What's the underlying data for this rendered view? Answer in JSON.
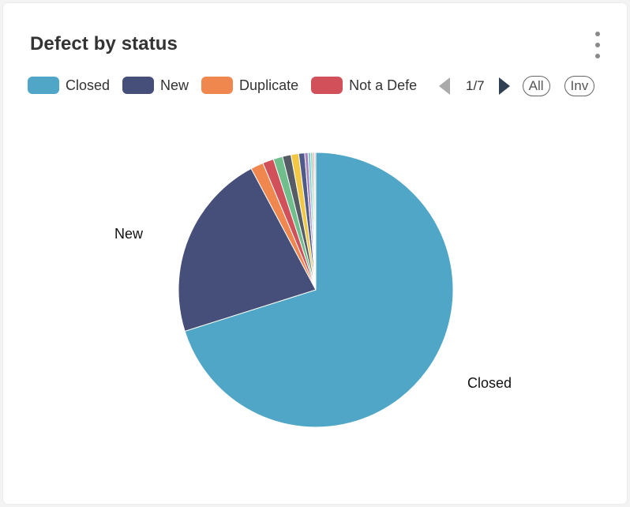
{
  "card": {
    "title": "Defect by status",
    "menu_icon": "kebab-vertical-icon"
  },
  "legend": {
    "items": [
      {
        "label": "Closed",
        "color": "#4fa6c7"
      },
      {
        "label": "New",
        "color": "#464f7a"
      },
      {
        "label": "Duplicate",
        "color": "#f0874f"
      },
      {
        "label": "Not a Defe",
        "color": "#d1505a"
      }
    ],
    "pager": {
      "prev_icon": "triangle-left-icon",
      "page": "1/7",
      "next_icon": "triangle-right-icon"
    },
    "all_label": "All",
    "inv_label": "Inv"
  },
  "chart_data": {
    "type": "pie",
    "title": "Defect by status",
    "slice_labels": [
      "Closed",
      "New"
    ],
    "slices": [
      {
        "name": "Closed",
        "value": 70.2,
        "color": "#4fa6c7",
        "labeled": true
      },
      {
        "name": "New",
        "value": 22.1,
        "color": "#464f7a",
        "labeled": true
      },
      {
        "name": "",
        "value": 1.5,
        "color": "#f0874f"
      },
      {
        "name": "",
        "value": 1.3,
        "color": "#d1505a"
      },
      {
        "name": "",
        "value": 1.1,
        "color": "#6fbe8c"
      },
      {
        "name": "",
        "value": 1.0,
        "color": "#555c66"
      },
      {
        "name": "",
        "value": 0.9,
        "color": "#f2c744"
      },
      {
        "name": "",
        "value": 0.7,
        "color": "#4d5a8a"
      },
      {
        "name": "",
        "value": 0.4,
        "color": "#a880c0"
      },
      {
        "name": "",
        "value": 0.3,
        "color": "#76c8d8"
      },
      {
        "name": "",
        "value": 0.25,
        "color": "#8fd0a0"
      },
      {
        "name": "",
        "value": 0.2,
        "color": "#e8a0b0"
      },
      {
        "name": "",
        "value": 0.15,
        "color": "#c0c0c0"
      }
    ]
  }
}
